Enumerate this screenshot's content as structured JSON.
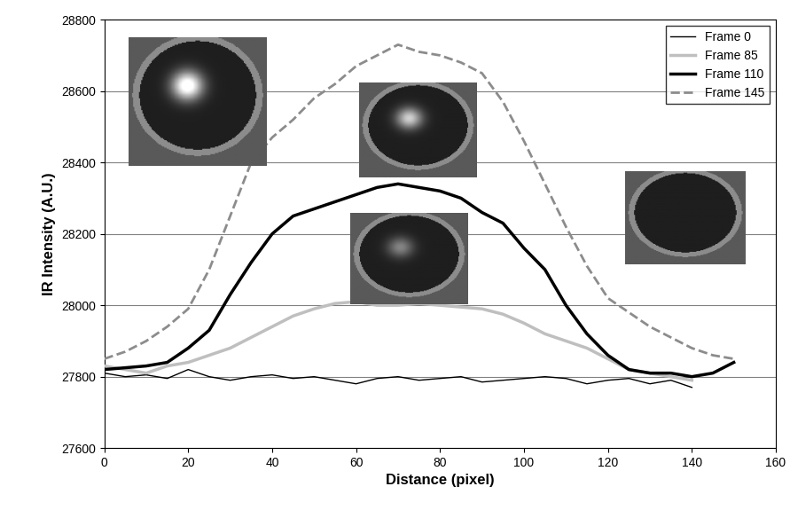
{
  "chart_data": {
    "type": "line",
    "x_label": "Distance (pixel)",
    "y_label": "IR Intensity (A.U.)",
    "x": [
      0,
      5,
      10,
      15,
      20,
      25,
      30,
      35,
      40,
      45,
      50,
      55,
      60,
      65,
      70,
      75,
      80,
      85,
      90,
      95,
      100,
      105,
      110,
      115,
      120,
      125,
      130,
      135,
      140,
      145,
      150
    ],
    "series": [
      {
        "name": "Frame 0",
        "color": "#000000",
        "line_style": "solid",
        "values": [
          27810,
          27800,
          27805,
          27795,
          27820,
          27800,
          27790,
          27800,
          27805,
          27795,
          27800,
          27790,
          27780,
          27795,
          27800,
          27790,
          27795,
          27800,
          27785,
          27790,
          27795,
          27800,
          27795,
          27780,
          27790,
          27795,
          27780,
          27790,
          27770,
          null,
          null
        ]
      },
      {
        "name": "Frame 85",
        "color": "#bfbfbf",
        "line_style": "solid",
        "values": [
          27830,
          27820,
          27810,
          27830,
          27840,
          27860,
          27880,
          27910,
          27940,
          27970,
          27990,
          28005,
          28010,
          28000,
          28000,
          28005,
          28000,
          27995,
          27990,
          27975,
          27950,
          27920,
          27900,
          27880,
          27850,
          27820,
          27810,
          27800,
          27790,
          null,
          null
        ]
      },
      {
        "name": "Frame 110",
        "color": "#000000",
        "line_style": "solid",
        "values": [
          27820,
          27825,
          27830,
          27840,
          27880,
          27930,
          28030,
          28120,
          28200,
          28250,
          28270,
          28290,
          28310,
          28330,
          28340,
          28330,
          28320,
          28300,
          28260,
          28230,
          28160,
          28100,
          28000,
          27920,
          27860,
          27820,
          27810,
          27810,
          27800,
          27810,
          27840
        ]
      },
      {
        "name": "Frame 145",
        "color": "#8c8c8c",
        "line_style": "dashed",
        "values": [
          27850,
          27870,
          27900,
          27940,
          27990,
          28100,
          28250,
          28400,
          28470,
          28520,
          28580,
          28620,
          28670,
          28700,
          28730,
          28710,
          28700,
          28680,
          28650,
          28570,
          28460,
          28340,
          28220,
          28110,
          28020,
          27980,
          27940,
          27910,
          27880,
          27860,
          27850
        ]
      }
    ],
    "xlim": [
      0,
      160
    ],
    "xticks": [
      0,
      20,
      40,
      60,
      80,
      100,
      120,
      140,
      160
    ],
    "ylim": [
      27600,
      28800
    ],
    "yticks": [
      27600,
      27800,
      28000,
      28200,
      28400,
      28600,
      28800
    ],
    "grid": true,
    "legend": "upper right"
  }
}
